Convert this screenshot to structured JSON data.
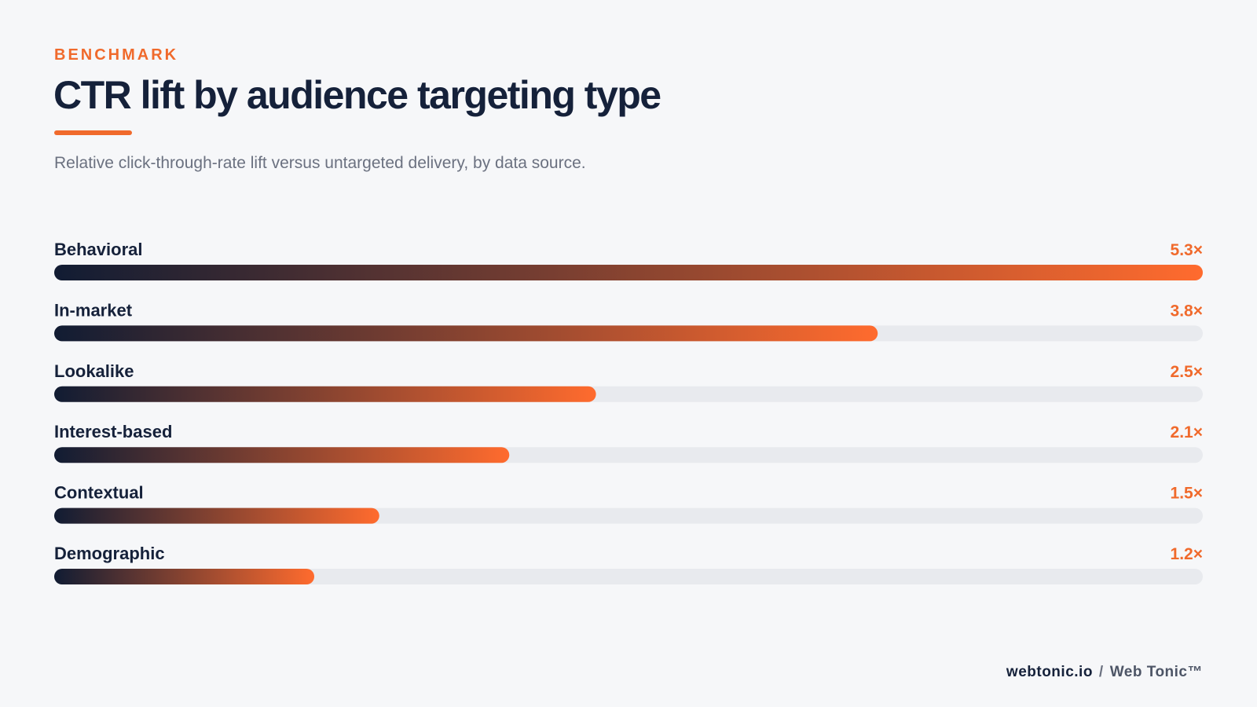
{
  "header": {
    "eyebrow": "BENCHMARK",
    "title": "CTR lift by audience targeting type",
    "subtitle": "Relative click-through-rate lift versus untargeted delivery, by data source."
  },
  "colors": {
    "accent": "#f06a2c",
    "navy": "#15213a",
    "track": "#e8eaee",
    "gradient_start": "#111c33",
    "gradient_end": "#ff6b2e"
  },
  "chart_data": {
    "type": "bar",
    "orientation": "horizontal",
    "categories": [
      "Behavioral",
      "In-market",
      "Lookalike",
      "Interest-based",
      "Contextual",
      "Demographic"
    ],
    "values": [
      5.3,
      3.8,
      2.5,
      2.1,
      1.5,
      1.2
    ],
    "value_labels": [
      "5.3×",
      "3.8×",
      "2.5×",
      "2.1×",
      "1.5×",
      "1.2×"
    ],
    "xlim": [
      0,
      5.3
    ],
    "grid": false,
    "legend": "none"
  },
  "footer": {
    "domain": "webtonic.io",
    "separator": "/",
    "brand": "Web Tonic™"
  }
}
